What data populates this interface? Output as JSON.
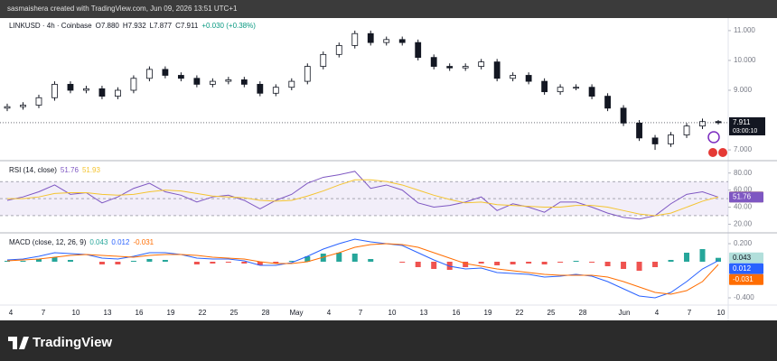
{
  "header": {
    "text": "sasmaishera created with TradingView.com, Jun 09, 2026 13:51 UTC+1"
  },
  "time_axis": {
    "labels": [
      "4",
      "7",
      "10",
      "13",
      "16",
      "19",
      "22",
      "25",
      "28",
      "May",
      "4",
      "7",
      "10",
      "13",
      "16",
      "19",
      "22",
      "25",
      "28",
      "Jun",
      "4",
      "7",
      "10"
    ]
  },
  "footer": {
    "logo_text": "TradingView"
  },
  "chart_data": [
    {
      "type": "candlestick",
      "instrument": "LINKUSD · 4h · Coinbase",
      "legend": [
        "O7.880",
        "H7.932",
        "L7.877",
        "C7.911",
        "+0.030 (+0.38%)"
      ],
      "countdown": "03:00:10",
      "up_color": "#ffffff",
      "down_color": "#131722",
      "grid": false,
      "ylim": [
        6.7,
        11.3
      ],
      "yticks": [
        {
          "value": 11,
          "label": "11.000"
        },
        {
          "value": 10,
          "label": "10.000"
        },
        {
          "value": 9,
          "label": "9.000"
        },
        {
          "value": 7,
          "label": "7.000"
        }
      ],
      "open": [
        8.4,
        8.45,
        8.5,
        8.75,
        9.2,
        9.0,
        9.05,
        8.8,
        9.0,
        9.4,
        9.7,
        9.5,
        9.4,
        9.2,
        9.3,
        9.35,
        9.2,
        8.9,
        9.1,
        9.3,
        9.8,
        10.2,
        10.5,
        10.9,
        10.6,
        10.7,
        10.6,
        10.1,
        9.8,
        9.75,
        9.8,
        9.95,
        9.4,
        9.5,
        9.3,
        8.95,
        9.1,
        9.1,
        8.8,
        8.4,
        7.9,
        7.4,
        7.2,
        7.5,
        7.8,
        7.95
      ],
      "high": [
        8.55,
        8.6,
        8.85,
        9.3,
        9.3,
        9.15,
        9.15,
        9.1,
        9.5,
        9.8,
        9.8,
        9.6,
        9.5,
        9.4,
        9.45,
        9.45,
        9.3,
        9.2,
        9.4,
        9.9,
        10.3,
        10.6,
        11.0,
        11.0,
        10.8,
        10.8,
        10.7,
        10.2,
        9.9,
        9.9,
        10.05,
        10.05,
        9.6,
        9.6,
        9.4,
        9.2,
        9.2,
        9.2,
        8.9,
        8.5,
        8.0,
        7.5,
        7.6,
        7.9,
        8.05,
        8.0
      ],
      "low": [
        8.3,
        8.35,
        8.4,
        8.65,
        8.9,
        8.9,
        8.7,
        8.7,
        8.9,
        9.3,
        9.4,
        9.3,
        9.1,
        9.1,
        9.2,
        9.1,
        8.8,
        8.8,
        9.0,
        9.2,
        9.7,
        10.1,
        10.4,
        10.5,
        10.5,
        10.5,
        10.0,
        9.7,
        9.65,
        9.65,
        9.7,
        9.3,
        9.3,
        9.2,
        8.85,
        8.85,
        9.0,
        8.7,
        8.3,
        7.8,
        7.3,
        7.0,
        7.1,
        7.4,
        7.7,
        7.85
      ],
      "close": [
        8.45,
        8.5,
        8.75,
        9.2,
        9.0,
        9.05,
        8.8,
        9.0,
        9.4,
        9.7,
        9.5,
        9.4,
        9.2,
        9.3,
        9.35,
        9.2,
        8.9,
        9.1,
        9.3,
        9.8,
        10.2,
        10.5,
        10.9,
        10.6,
        10.7,
        10.6,
        10.1,
        9.8,
        9.75,
        9.8,
        9.95,
        9.4,
        9.5,
        9.3,
        8.95,
        9.1,
        9.1,
        8.8,
        8.4,
        7.9,
        7.4,
        7.2,
        7.5,
        7.8,
        7.95,
        7.911
      ]
    },
    {
      "type": "line",
      "title": "RSI (14, close)",
      "ylim": [
        12,
        92.4
      ],
      "yticks": [
        {
          "value": 80,
          "label": "80.00"
        },
        {
          "value": 60,
          "label": "60.00"
        },
        {
          "value": 40,
          "label": "40.00"
        },
        {
          "value": 20,
          "label": "20.00"
        }
      ],
      "bands": [
        70,
        50,
        30
      ],
      "band_color": "#7e57c2",
      "series": [
        {
          "color": "#7e57c2",
          "values": [
            48,
            52,
            58,
            66,
            55,
            57,
            45,
            52,
            62,
            68,
            58,
            54,
            46,
            52,
            54,
            48,
            38,
            48,
            55,
            68,
            75,
            78,
            82,
            62,
            66,
            60,
            45,
            40,
            42,
            46,
            52,
            36,
            44,
            40,
            34,
            46,
            46,
            40,
            33,
            28,
            26,
            30,
            44,
            55,
            58,
            51.76
          ]
        },
        {
          "color": "#f4c430",
          "values": [
            50,
            50,
            52,
            56,
            57,
            57,
            55,
            54,
            55,
            58,
            60,
            59,
            56,
            53,
            52,
            51,
            48,
            47,
            48,
            53,
            59,
            66,
            72,
            72,
            70,
            66,
            60,
            54,
            49,
            45,
            46,
            43,
            42,
            41,
            40,
            40,
            42,
            42,
            40,
            36,
            32,
            30,
            33,
            40,
            47,
            51.93
          ]
        }
      ]
    },
    {
      "type": "macd",
      "title": "MACD (close, 12, 26, 9)",
      "ylim": [
        -0.46,
        0.3
      ],
      "yticks": [
        {
          "value": 0.2,
          "label": "0.200"
        },
        {
          "value": -0.4,
          "label": "-0.400"
        }
      ],
      "series": [
        {
          "type": "bar",
          "color": "#26a69a",
          "negative_color": "#ef5350",
          "values": [
            0.01,
            0.01,
            0.03,
            0.05,
            0.02,
            0.0,
            -0.03,
            -0.03,
            0.01,
            0.03,
            0.02,
            0.0,
            -0.03,
            -0.02,
            -0.01,
            -0.02,
            -0.04,
            -0.02,
            0.01,
            0.06,
            0.09,
            0.1,
            0.09,
            0.03,
            0.0,
            -0.01,
            -0.06,
            -0.08,
            -0.09,
            -0.06,
            -0.02,
            -0.04,
            -0.03,
            -0.02,
            -0.03,
            -0.01,
            0.01,
            -0.01,
            -0.05,
            -0.08,
            -0.1,
            -0.06,
            0.02,
            0.1,
            0.14,
            0.043
          ]
        },
        {
          "type": "line",
          "color": "#2962ff",
          "values": [
            0.02,
            0.03,
            0.06,
            0.1,
            0.09,
            0.08,
            0.04,
            0.03,
            0.06,
            0.1,
            0.1,
            0.08,
            0.04,
            0.03,
            0.03,
            0.01,
            -0.04,
            -0.04,
            -0.01,
            0.06,
            0.14,
            0.2,
            0.25,
            0.22,
            0.2,
            0.18,
            0.1,
            0.02,
            -0.05,
            -0.08,
            -0.07,
            -0.12,
            -0.13,
            -0.14,
            -0.17,
            -0.16,
            -0.14,
            -0.16,
            -0.22,
            -0.3,
            -0.38,
            -0.4,
            -0.34,
            -0.22,
            -0.08,
            0.012
          ]
        },
        {
          "type": "line",
          "color": "#ff6d00",
          "values": [
            0.01,
            0.02,
            0.03,
            0.05,
            0.07,
            0.08,
            0.07,
            0.06,
            0.05,
            0.07,
            0.08,
            0.08,
            0.07,
            0.05,
            0.04,
            0.03,
            0.0,
            -0.02,
            -0.02,
            0.0,
            0.05,
            0.1,
            0.16,
            0.19,
            0.2,
            0.19,
            0.16,
            0.1,
            0.04,
            -0.02,
            -0.05,
            -0.08,
            -0.1,
            -0.12,
            -0.14,
            -0.15,
            -0.15,
            -0.15,
            -0.17,
            -0.22,
            -0.28,
            -0.34,
            -0.36,
            -0.32,
            -0.22,
            -0.031
          ]
        }
      ]
    }
  ]
}
